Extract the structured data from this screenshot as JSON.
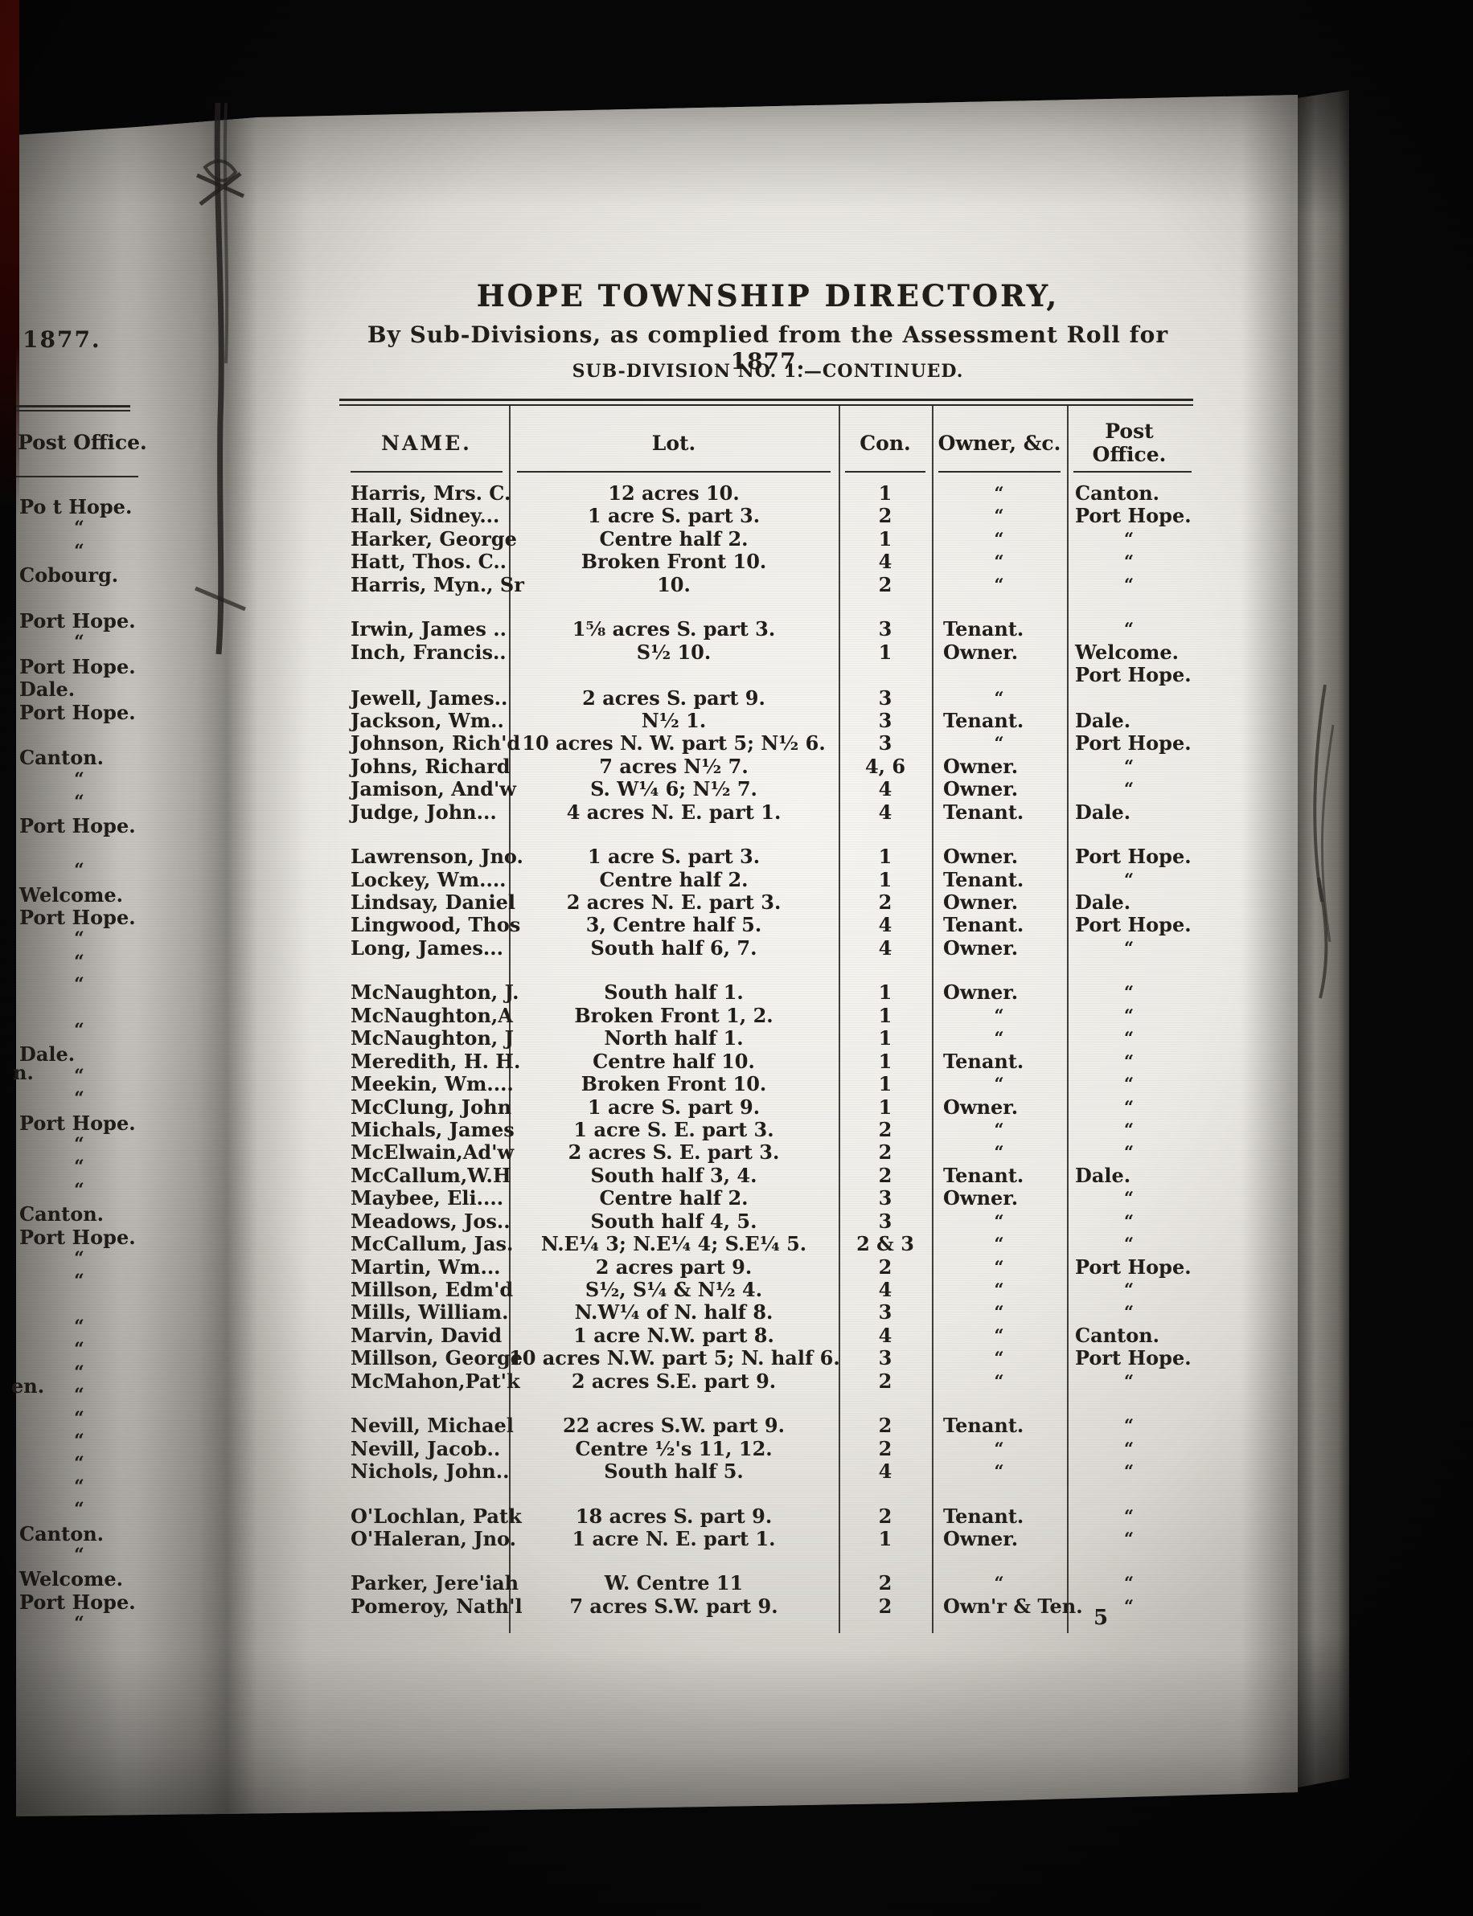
{
  "document": {
    "title": "HOPE TOWNSHIP DIRECTORY,",
    "subtitle": "By Sub-Divisions, as complied from the Assessment Roll for 1877.",
    "section": "SUB-DIVISION NO. 1.—CONTINUED.",
    "page_number": "5"
  },
  "table": {
    "headers": [
      "NAME.",
      "Lot.",
      "Con.",
      "Owner, &c.",
      "Post Office."
    ],
    "ditto_mark": "“",
    "rows": [
      [
        "Harris, Mrs. C.",
        "12 acres 10.",
        "1",
        "“",
        "Canton."
      ],
      [
        "Hall, Sidney...",
        "1 acre S. part 3.",
        "2",
        "“",
        "Port Hope."
      ],
      [
        "Harker, George",
        "Centre half 2.",
        "1",
        "“",
        "“"
      ],
      [
        "Hatt, Thos. C..",
        "Broken Front 10.",
        "4",
        "“",
        "“"
      ],
      [
        "Harris, Myn., Sr",
        "10.",
        "2",
        "“",
        "“"
      ],
      "GAP",
      [
        "Irwin, James ..",
        "1⅝ acres S. part 3.",
        "3",
        "Tenant.",
        "“"
      ],
      [
        "Inch, Francis..",
        "S½ 10.",
        "1",
        "Owner.",
        "Welcome."
      ],
      [
        "",
        "",
        "",
        "",
        "Port Hope."
      ],
      [
        "Jewell, James..",
        "2 acres S. part 9.",
        "3",
        "“",
        ""
      ],
      [
        "Jackson, Wm..",
        "N½ 1.",
        "3",
        "Tenant.",
        "Dale."
      ],
      [
        "Johnson, Rich'd",
        "10 acres N. W. part 5; N½ 6.",
        "3",
        "“",
        "Port Hope."
      ],
      [
        "Johns, Richard",
        "7 acres N½ 7.",
        "4, 6",
        "Owner.",
        "“"
      ],
      [
        "Jamison, And'w",
        "S. W¼ 6; N½ 7.",
        "4",
        "Owner.",
        "“"
      ],
      [
        "Judge, John...",
        "4 acres N. E. part 1.",
        "4",
        "Tenant.",
        "Dale."
      ],
      "GAP",
      [
        "Lawrenson, Jno.",
        "1 acre S. part 3.",
        "1",
        "Owner.",
        "Port Hope."
      ],
      [
        "Lockey, Wm....",
        "Centre half 2.",
        "1",
        "Tenant.",
        "“"
      ],
      [
        "Lindsay, Daniel",
        "2 acres N. E. part 3.",
        "2",
        "Owner.",
        "Dale."
      ],
      [
        "Lingwood, Thos",
        "3, Centre half 5.",
        "4",
        "Tenant.",
        "Port Hope."
      ],
      [
        "Long, James...",
        "South half 6, 7.",
        "4",
        "Owner.",
        "“"
      ],
      "GAP",
      [
        "McNaughton, J.",
        "South half 1.",
        "1",
        "Owner.",
        "“"
      ],
      [
        "McNaughton,A",
        "Broken Front 1, 2.",
        "1",
        "“",
        "“"
      ],
      [
        "McNaughton, J",
        "North half 1.",
        "1",
        "“",
        "“"
      ],
      [
        "Meredith, H. H.",
        "Centre half 10.",
        "1",
        "Tenant.",
        "“"
      ],
      [
        "Meekin, Wm....",
        "Broken Front 10.",
        "1",
        "“",
        "“"
      ],
      [
        "McClung, John",
        "1 acre S.  part 9.",
        "1",
        "Owner.",
        "“"
      ],
      [
        "Michals, James",
        "1 acre S. E. part 3.",
        "2",
        "“",
        "“"
      ],
      [
        "McElwain,Ad'w",
        "2 acres S. E. part 3.",
        "2",
        "“",
        "“"
      ],
      [
        "McCallum,W.H",
        "South half 3, 4.",
        "2",
        "Tenant.",
        "Dale."
      ],
      [
        "Maybee, Eli....",
        "Centre half 2.",
        "3",
        "Owner.",
        "“"
      ],
      [
        "Meadows, Jos..",
        "South half 4, 5.",
        "3",
        "“",
        "“"
      ],
      [
        "McCallum, Jas.",
        "N.E¼ 3; N.E¼ 4; S.E¼ 5.",
        "2 & 3",
        "“",
        "“"
      ],
      [
        "Martin, Wm...",
        "2 acres part 9.",
        "2",
        "“",
        "Port Hope."
      ],
      [
        "Millson, Edm'd",
        "S½, S¼ & N½ 4.",
        "4",
        "“",
        "“"
      ],
      [
        "Mills, William.",
        "N.W¼  of N. half 8.",
        "3",
        "“",
        "“"
      ],
      [
        "Marvin, David",
        "1 acre N.W. part 8.",
        "4",
        "“",
        "Canton."
      ],
      [
        "Millson, George",
        "10 acres N.W. part 5; N. half 6.",
        "3",
        "“",
        "Port Hope."
      ],
      [
        "McMahon,Pat'k",
        "2 acres S.E. part 9.",
        "2",
        "“",
        "“"
      ],
      "GAP",
      [
        "Nevill, Michael",
        "22 acres S.W. part 9.",
        "2",
        "Tenant.",
        "“"
      ],
      [
        "Nevill, Jacob..",
        "Centre ½'s 11, 12.",
        "2",
        "“",
        "“"
      ],
      [
        "Nichols, John..",
        "South half 5.",
        "4",
        "“",
        "“"
      ],
      "GAP",
      [
        "O'Lochlan, Patk",
        "18 acres S. part 9.",
        "2",
        "Tenant.",
        "“"
      ],
      [
        "O'Haleran, Jno.",
        "1 acre N. E. part 1.",
        "1",
        "Owner.",
        "“"
      ],
      "GAP",
      [
        "Parker, Jere'iah",
        "W. Centre 11",
        "2",
        "“",
        "“"
      ],
      [
        "Pomeroy, Nath'l",
        "7 acres S.W. part 9.",
        "2",
        "Own'r & Ten.",
        "“"
      ]
    ]
  },
  "left_page": {
    "year": "1877.",
    "column_header": "Post Office.",
    "entries": [
      "Po t Hope.",
      "“",
      "“",
      "Cobourg.",
      "",
      "Port Hope.",
      "“",
      "Port Hope.",
      "Dale.",
      "Port Hope.",
      "",
      "Canton.",
      "“",
      "“",
      "Port Hope.",
      "",
      "“",
      "Welcome.",
      "Port Hope.",
      "“",
      "“",
      "“",
      "",
      "“",
      "Dale.",
      "“",
      "“",
      "Port Hope.",
      "“",
      "“",
      "“",
      "Canton.",
      "Port Hope.",
      "“",
      "“",
      "",
      "“",
      "“",
      "“",
      "“",
      "“",
      "“",
      "“",
      "“",
      "“",
      "Canton.",
      "“",
      "Welcome.",
      "Port Hope.",
      "“"
    ],
    "edge_fragments": [
      "n.",
      "en."
    ]
  },
  "colors": {
    "paper_light": "#f6f5f1",
    "paper_dark": "#cfccc6",
    "ink": "#211e1a",
    "spine_red": "#4d0a06",
    "background": "#060606"
  }
}
